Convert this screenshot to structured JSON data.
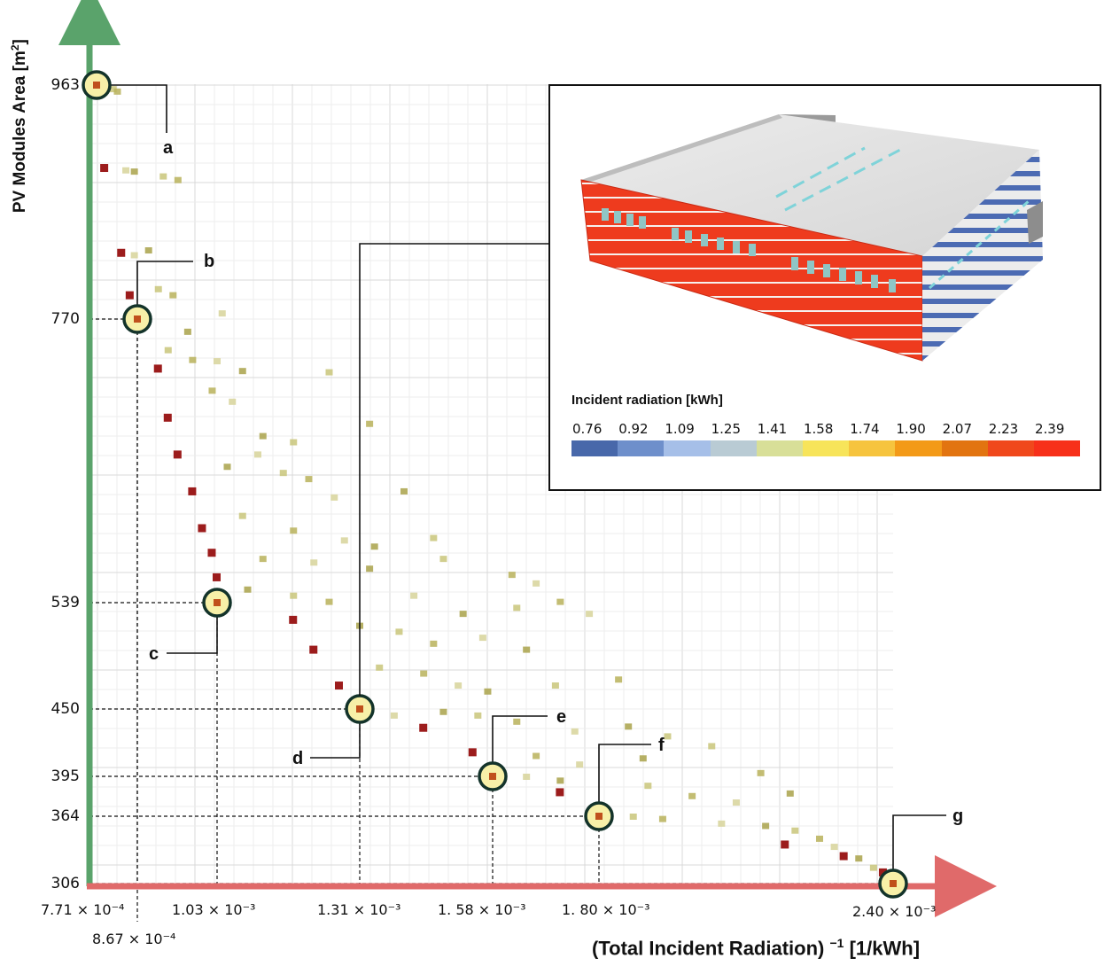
{
  "chart_data": {
    "type": "scatter",
    "xlabel": "(Total Incident Radiation)",
    "xlabel_exp": "−1",
    "xlabel_unit": "[1/kWh]",
    "ylabel": "PV Modules Area [m",
    "ylabel_sup": "2",
    "ylabel_end": "]",
    "grid": true,
    "yticks": [
      963,
      770,
      539,
      450,
      395,
      364,
      306
    ],
    "xticks": [
      "7.71 × 10⁻⁴",
      "8.67 × 10⁻⁴",
      "1.03 × 10⁻³",
      "1.31 × 10⁻³",
      "1. 58 × 10⁻³",
      "1. 80 × 10⁻³",
      "2.40 × 10⁻³"
    ],
    "highlighted_points": [
      {
        "label": "a",
        "x": 0.000771,
        "y": 963
      },
      {
        "label": "b",
        "x": 0.000867,
        "y": 770
      },
      {
        "label": "c",
        "x": 0.00103,
        "y": 539
      },
      {
        "label": "d",
        "x": 0.00131,
        "y": 450
      },
      {
        "label": "e",
        "x": 0.00158,
        "y": 395
      },
      {
        "label": "f",
        "x": 0.0018,
        "y": 364
      },
      {
        "label": "g",
        "x": 0.0024,
        "y": 306
      }
    ],
    "pareto_front": [
      {
        "x": 0.000771,
        "y": 963
      },
      {
        "x": 0.00079,
        "y": 895
      },
      {
        "x": 0.00083,
        "y": 825
      },
      {
        "x": 0.00085,
        "y": 790
      },
      {
        "x": 0.000867,
        "y": 770
      },
      {
        "x": 0.00091,
        "y": 730
      },
      {
        "x": 0.00093,
        "y": 690
      },
      {
        "x": 0.00095,
        "y": 660
      },
      {
        "x": 0.00098,
        "y": 630
      },
      {
        "x": 0.001,
        "y": 600
      },
      {
        "x": 0.00102,
        "y": 580
      },
      {
        "x": 0.00103,
        "y": 560
      },
      {
        "x": 0.00103,
        "y": 539
      },
      {
        "x": 0.00118,
        "y": 525
      },
      {
        "x": 0.00122,
        "y": 500
      },
      {
        "x": 0.00127,
        "y": 470
      },
      {
        "x": 0.00131,
        "y": 450
      },
      {
        "x": 0.00144,
        "y": 435
      },
      {
        "x": 0.00154,
        "y": 415
      },
      {
        "x": 0.00158,
        "y": 395
      },
      {
        "x": 0.00172,
        "y": 383
      },
      {
        "x": 0.0018,
        "y": 364
      },
      {
        "x": 0.00218,
        "y": 340
      },
      {
        "x": 0.0023,
        "y": 330
      },
      {
        "x": 0.00238,
        "y": 316
      },
      {
        "x": 0.0024,
        "y": 306
      }
    ],
    "other_points": [
      {
        "x": 0.00081,
        "y": 960
      },
      {
        "x": 0.00082,
        "y": 958
      },
      {
        "x": 0.00084,
        "y": 893
      },
      {
        "x": 0.00086,
        "y": 892
      },
      {
        "x": 0.00092,
        "y": 888
      },
      {
        "x": 0.00095,
        "y": 885
      },
      {
        "x": 0.00086,
        "y": 823
      },
      {
        "x": 0.00089,
        "y": 827
      },
      {
        "x": 0.00091,
        "y": 795
      },
      {
        "x": 0.00094,
        "y": 790
      },
      {
        "x": 0.00104,
        "y": 775
      },
      {
        "x": 0.00097,
        "y": 760
      },
      {
        "x": 0.00093,
        "y": 745
      },
      {
        "x": 0.00098,
        "y": 737
      },
      {
        "x": 0.00103,
        "y": 736
      },
      {
        "x": 0.00108,
        "y": 728
      },
      {
        "x": 0.00125,
        "y": 727
      },
      {
        "x": 0.00102,
        "y": 712
      },
      {
        "x": 0.00106,
        "y": 703
      },
      {
        "x": 0.00112,
        "y": 675
      },
      {
        "x": 0.00118,
        "y": 670
      },
      {
        "x": 0.00133,
        "y": 685
      },
      {
        "x": 0.00111,
        "y": 660
      },
      {
        "x": 0.00105,
        "y": 650
      },
      {
        "x": 0.00116,
        "y": 645
      },
      {
        "x": 0.00121,
        "y": 640
      },
      {
        "x": 0.00126,
        "y": 625
      },
      {
        "x": 0.0014,
        "y": 630
      },
      {
        "x": 0.00108,
        "y": 610
      },
      {
        "x": 0.00118,
        "y": 598
      },
      {
        "x": 0.00128,
        "y": 590
      },
      {
        "x": 0.00134,
        "y": 585
      },
      {
        "x": 0.00146,
        "y": 592
      },
      {
        "x": 0.00112,
        "y": 575
      },
      {
        "x": 0.00122,
        "y": 572
      },
      {
        "x": 0.00133,
        "y": 567
      },
      {
        "x": 0.00148,
        "y": 575
      },
      {
        "x": 0.00162,
        "y": 562
      },
      {
        "x": 0.00167,
        "y": 555
      },
      {
        "x": 0.00109,
        "y": 550
      },
      {
        "x": 0.00118,
        "y": 545
      },
      {
        "x": 0.00125,
        "y": 540
      },
      {
        "x": 0.00142,
        "y": 545
      },
      {
        "x": 0.00152,
        "y": 530
      },
      {
        "x": 0.00163,
        "y": 535
      },
      {
        "x": 0.00172,
        "y": 540
      },
      {
        "x": 0.00178,
        "y": 530
      },
      {
        "x": 0.00131,
        "y": 520
      },
      {
        "x": 0.00139,
        "y": 515
      },
      {
        "x": 0.00146,
        "y": 505
      },
      {
        "x": 0.00156,
        "y": 510
      },
      {
        "x": 0.00165,
        "y": 500
      },
      {
        "x": 0.00135,
        "y": 485
      },
      {
        "x": 0.00144,
        "y": 480
      },
      {
        "x": 0.00151,
        "y": 470
      },
      {
        "x": 0.00157,
        "y": 465
      },
      {
        "x": 0.00171,
        "y": 470
      },
      {
        "x": 0.00184,
        "y": 475
      },
      {
        "x": 0.00138,
        "y": 445
      },
      {
        "x": 0.00148,
        "y": 448
      },
      {
        "x": 0.00155,
        "y": 445
      },
      {
        "x": 0.00163,
        "y": 440
      },
      {
        "x": 0.00175,
        "y": 432
      },
      {
        "x": 0.00186,
        "y": 436
      },
      {
        "x": 0.00194,
        "y": 428
      },
      {
        "x": 0.00167,
        "y": 412
      },
      {
        "x": 0.00176,
        "y": 405
      },
      {
        "x": 0.00189,
        "y": 410
      },
      {
        "x": 0.00203,
        "y": 420
      },
      {
        "x": 0.00213,
        "y": 398
      },
      {
        "x": 0.00165,
        "y": 395
      },
      {
        "x": 0.00172,
        "y": 392
      },
      {
        "x": 0.0019,
        "y": 388
      },
      {
        "x": 0.00199,
        "y": 380
      },
      {
        "x": 0.00208,
        "y": 375
      },
      {
        "x": 0.00219,
        "y": 382
      },
      {
        "x": 0.00187,
        "y": 364
      },
      {
        "x": 0.00193,
        "y": 362
      },
      {
        "x": 0.00205,
        "y": 358
      },
      {
        "x": 0.00214,
        "y": 356
      },
      {
        "x": 0.0022,
        "y": 352
      },
      {
        "x": 0.00225,
        "y": 345
      },
      {
        "x": 0.00228,
        "y": 338
      },
      {
        "x": 0.00233,
        "y": 328
      },
      {
        "x": 0.00236,
        "y": 320
      }
    ]
  },
  "inset": {
    "legend_title": "Incident radiation [kWh]",
    "legend_labels": [
      "0.76",
      "0.92",
      "1.09",
      "1.25",
      "1.41",
      "1.58",
      "1.74",
      "1.90",
      "2.07",
      "2.23",
      "2.39"
    ],
    "legend_colors": [
      "#4868aa",
      "#6e8fcb",
      "#a6bfe8",
      "#b9cbd4",
      "#d8df98",
      "#f7e45a",
      "#f6c43e",
      "#f39a18",
      "#e27410",
      "#f0481c",
      "#f7301a"
    ]
  }
}
